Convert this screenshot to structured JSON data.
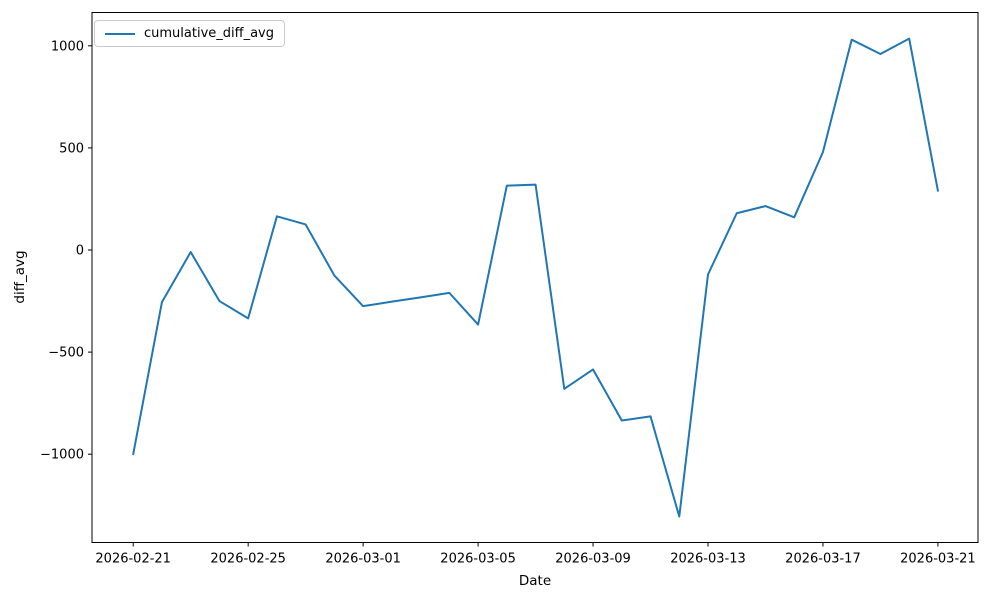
{
  "chart_data": {
    "type": "line",
    "title": "",
    "xlabel": "Date",
    "ylabel": "diff_avg",
    "legend": [
      "cumulative_diff_avg"
    ],
    "legend_position": "upper left",
    "grid": false,
    "line_color": "#1f77b4",
    "axis_color": "#000000",
    "x": [
      "2026-02-21",
      "2026-02-22",
      "2026-02-23",
      "2026-02-24",
      "2026-02-25",
      "2026-02-26",
      "2026-02-27",
      "2026-02-28",
      "2026-03-01",
      "2026-03-02",
      "2026-03-03",
      "2026-03-04",
      "2026-03-05",
      "2026-03-06",
      "2026-03-07",
      "2026-03-08",
      "2026-03-09",
      "2026-03-10",
      "2026-03-11",
      "2026-03-12",
      "2026-03-13",
      "2026-03-14",
      "2026-03-15",
      "2026-03-16",
      "2026-03-17",
      "2026-03-18",
      "2026-03-19",
      "2026-03-20",
      "2026-03-21"
    ],
    "series": [
      {
        "name": "cumulative_diff_avg",
        "values": [
          -1000,
          -255,
          -10,
          -250,
          -335,
          165,
          125,
          -125,
          -275,
          -253,
          -232,
          -210,
          -365,
          315,
          320,
          -680,
          -585,
          -835,
          -815,
          -1305,
          -120,
          180,
          215,
          160,
          480,
          1030,
          960,
          1035,
          290
        ]
      }
    ],
    "x_ticks": [
      "2026-02-21",
      "2026-02-25",
      "2026-03-01",
      "2026-03-05",
      "2026-03-09",
      "2026-03-13",
      "2026-03-17",
      "2026-03-21"
    ],
    "y_ticks": [
      1000,
      500,
      0,
      -500,
      -1000
    ],
    "ylim": [
      -1430,
      1160
    ]
  }
}
